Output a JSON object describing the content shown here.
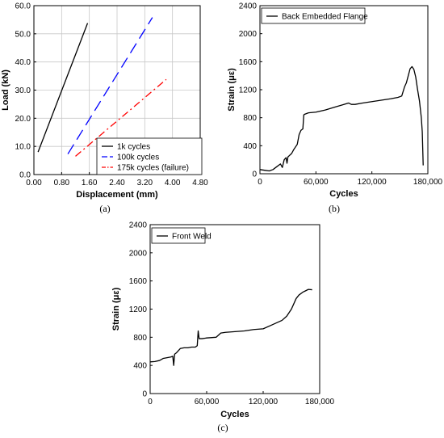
{
  "chart_data": [
    {
      "type": "line",
      "caption": "(a)",
      "xlabel": "Displacement (mm)",
      "ylabel": "Load (kN)",
      "xlim": [
        0,
        4.8
      ],
      "ylim": [
        0,
        60
      ],
      "x_ticks": [
        "0.00",
        "0.80",
        "1.60",
        "2.40",
        "3.20",
        "4.00",
        "4.80"
      ],
      "y_ticks": [
        "0.0",
        "10.0",
        "20.0",
        "30.0",
        "40.0",
        "50.0",
        "60.0"
      ],
      "grid": true,
      "legend_position": "bottom-right",
      "series": [
        {
          "name": "1k cycles",
          "color": "#000000",
          "dash": "solid",
          "points": [
            [
              0.12,
              8.0
            ],
            [
              1.55,
              53.8
            ]
          ]
        },
        {
          "name": "100k cycles",
          "color": "#0000ff",
          "dash": "long-dash",
          "points": [
            [
              0.98,
              7.3
            ],
            [
              3.42,
              55.8
            ]
          ]
        },
        {
          "name": "175k cycles (failure)",
          "color": "#ff0000",
          "dash": "dash-dot",
          "points": [
            [
              1.2,
              6.5
            ],
            [
              3.82,
              33.8
            ]
          ]
        }
      ]
    },
    {
      "type": "line",
      "caption": "(b)",
      "xlabel": "Cycles",
      "ylabel": "Strain (με)",
      "xlim": [
        0,
        180000
      ],
      "ylim": [
        0,
        2400
      ],
      "x_ticks": [
        "0",
        "60,000",
        "120,000",
        "180,000"
      ],
      "y_ticks": [
        "0",
        "400",
        "800",
        "1200",
        "1600",
        "2000",
        "2400"
      ],
      "grid": false,
      "legend_position": "top-left",
      "series": [
        {
          "name": "Back Embedded Flange",
          "color": "#000000",
          "points": [
            [
              0,
              60
            ],
            [
              5000,
              50
            ],
            [
              10000,
              40
            ],
            [
              14000,
              60
            ],
            [
              18000,
              100
            ],
            [
              22000,
              140
            ],
            [
              24000,
              90
            ],
            [
              26000,
              200
            ],
            [
              28000,
              230
            ],
            [
              29000,
              150
            ],
            [
              30000,
              240
            ],
            [
              34000,
              290
            ],
            [
              36000,
              340
            ],
            [
              38000,
              380
            ],
            [
              40000,
              420
            ],
            [
              42000,
              560
            ],
            [
              44000,
              620
            ],
            [
              46000,
              640
            ],
            [
              47000,
              840
            ],
            [
              48000,
              850
            ],
            [
              50000,
              860
            ],
            [
              52000,
              870
            ],
            [
              60000,
              880
            ],
            [
              70000,
              910
            ],
            [
              80000,
              950
            ],
            [
              90000,
              990
            ],
            [
              95000,
              1010
            ],
            [
              98000,
              990
            ],
            [
              102000,
              990
            ],
            [
              110000,
              1010
            ],
            [
              120000,
              1030
            ],
            [
              130000,
              1050
            ],
            [
              140000,
              1070
            ],
            [
              148000,
              1090
            ],
            [
              152000,
              1110
            ],
            [
              155000,
              1240
            ],
            [
              157000,
              1300
            ],
            [
              159000,
              1400
            ],
            [
              161000,
              1500
            ],
            [
              163000,
              1530
            ],
            [
              165000,
              1490
            ],
            [
              167000,
              1380
            ],
            [
              169000,
              1200
            ],
            [
              171000,
              1040
            ],
            [
              173000,
              800
            ],
            [
              174000,
              600
            ],
            [
              175000,
              120
            ]
          ]
        }
      ]
    },
    {
      "type": "line",
      "caption": "(c)",
      "xlabel": "Cycles",
      "ylabel": "Strain (με)",
      "xlim": [
        0,
        180000
      ],
      "ylim": [
        0,
        2400
      ],
      "x_ticks": [
        "0",
        "60,000",
        "120,000",
        "180,000"
      ],
      "y_ticks": [
        "0",
        "400",
        "800",
        "1200",
        "1600",
        "2000",
        "2400"
      ],
      "grid": false,
      "legend_position": "top-left",
      "series": [
        {
          "name": "Front Weld",
          "color": "#000000",
          "points": [
            [
              0,
              450
            ],
            [
              5000,
              455
            ],
            [
              10000,
              470
            ],
            [
              14000,
              500
            ],
            [
              18000,
              510
            ],
            [
              22000,
              520
            ],
            [
              24000,
              530
            ],
            [
              25000,
              400
            ],
            [
              26000,
              560
            ],
            [
              28000,
              580
            ],
            [
              32000,
              640
            ],
            [
              36000,
              650
            ],
            [
              40000,
              650
            ],
            [
              44000,
              660
            ],
            [
              48000,
              660
            ],
            [
              50000,
              680
            ],
            [
              51000,
              890
            ],
            [
              52000,
              780
            ],
            [
              55000,
              780
            ],
            [
              60000,
              790
            ],
            [
              70000,
              800
            ],
            [
              75000,
              860
            ],
            [
              80000,
              870
            ],
            [
              90000,
              880
            ],
            [
              100000,
              890
            ],
            [
              110000,
              910
            ],
            [
              120000,
              920
            ],
            [
              130000,
              980
            ],
            [
              140000,
              1040
            ],
            [
              145000,
              1100
            ],
            [
              150000,
              1200
            ],
            [
              155000,
              1350
            ],
            [
              158000,
              1400
            ],
            [
              162000,
              1440
            ],
            [
              165000,
              1460
            ],
            [
              168000,
              1480
            ],
            [
              172000,
              1475
            ]
          ]
        }
      ]
    }
  ]
}
